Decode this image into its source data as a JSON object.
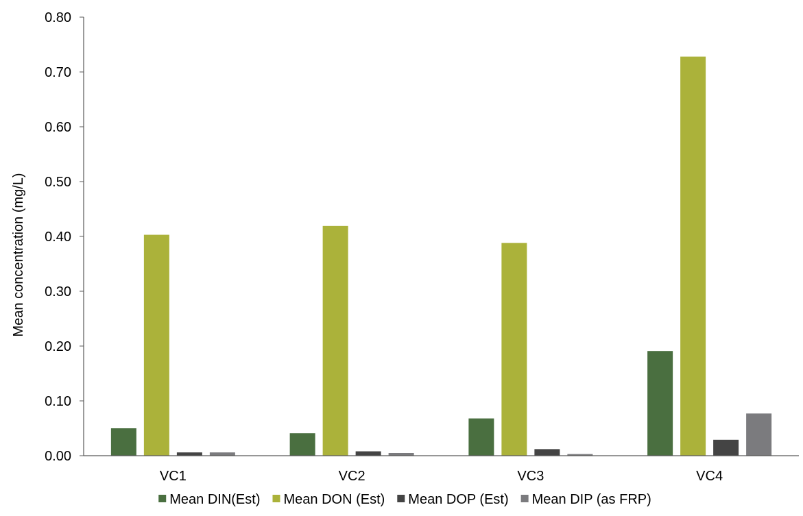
{
  "chart_data": {
    "type": "bar",
    "title": "",
    "xlabel": "",
    "ylabel": "Mean concentration (mg/L)",
    "ylim": [
      0,
      0.8
    ],
    "yticks": [
      "0.00",
      "0.10",
      "0.20",
      "0.30",
      "0.40",
      "0.50",
      "0.60",
      "0.70",
      "0.80"
    ],
    "categories": [
      "VC1",
      "VC2",
      "VC3",
      "VC4"
    ],
    "grid": false,
    "legend_position": "bottom",
    "series": [
      {
        "name": "Mean DIN(Est)",
        "color": "#4a6f40",
        "values": [
          0.05,
          0.041,
          0.068,
          0.191
        ]
      },
      {
        "name": "Mean DON (Est)",
        "color": "#abb23a",
        "values": [
          0.403,
          0.419,
          0.388,
          0.728
        ]
      },
      {
        "name": "Mean DOP (Est)",
        "color": "#444444",
        "values": [
          0.006,
          0.008,
          0.012,
          0.029
        ]
      },
      {
        "name": "Mean DIP (as FRP)",
        "color": "#7b7b7e",
        "values": [
          0.006,
          0.005,
          0.003,
          0.077
        ]
      }
    ]
  }
}
